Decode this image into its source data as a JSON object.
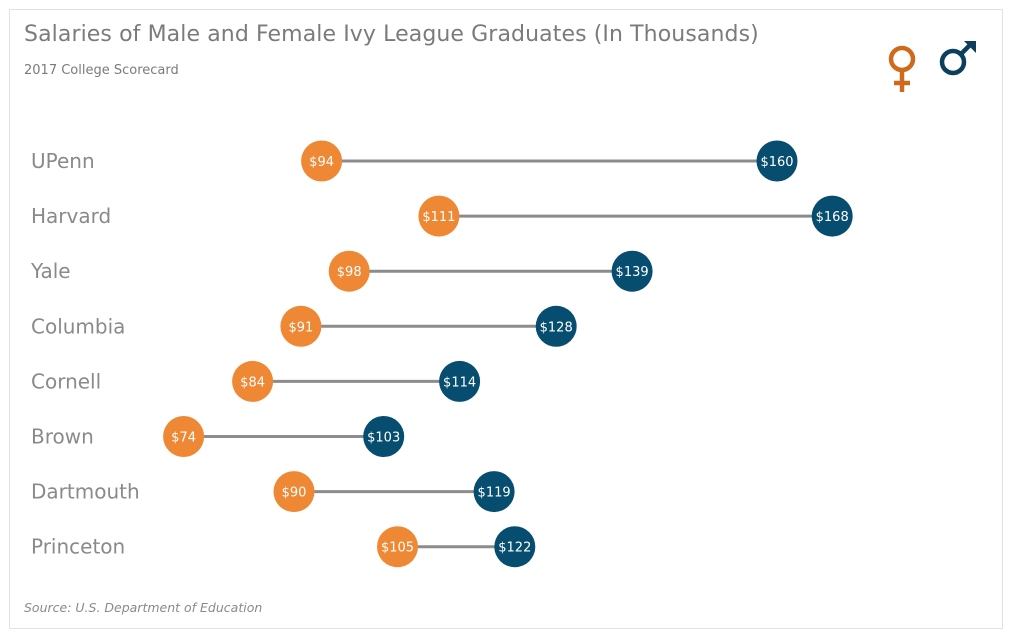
{
  "header": {
    "title": "Salaries of Male and Female Ivy League Graduates (In Thousands)",
    "subtitle": "2017 College Scorecard"
  },
  "footer": {
    "source": "Source: U.S. Department of Education"
  },
  "legend": {
    "items": [
      {
        "name": "Female",
        "icon": "female-symbol-icon",
        "color": "#cf6a1c"
      },
      {
        "name": "Male",
        "icon": "male-symbol-icon",
        "color": "#0d3e5e"
      }
    ]
  },
  "colors": {
    "female": "#ef8834",
    "male": "#064d6f",
    "connector": "#8c8c8c"
  },
  "chart_data": {
    "type": "dumbbell",
    "title": "Salaries of Male and Female Ivy League Graduates (In Thousands)",
    "subtitle": "2017 College Scorecard",
    "xlabel": "",
    "ylabel": "",
    "value_prefix": "$",
    "categories": [
      "UPenn",
      "Harvard",
      "Yale",
      "Columbia",
      "Cornell",
      "Brown",
      "Dartmouth",
      "Princeton"
    ],
    "series": [
      {
        "name": "Female",
        "values": [
          94,
          111,
          98,
          91,
          84,
          74,
          90,
          105
        ]
      },
      {
        "name": "Male",
        "values": [
          160,
          168,
          139,
          128,
          114,
          103,
          119,
          122
        ]
      }
    ],
    "grid": false,
    "legend_position": "top-right"
  }
}
